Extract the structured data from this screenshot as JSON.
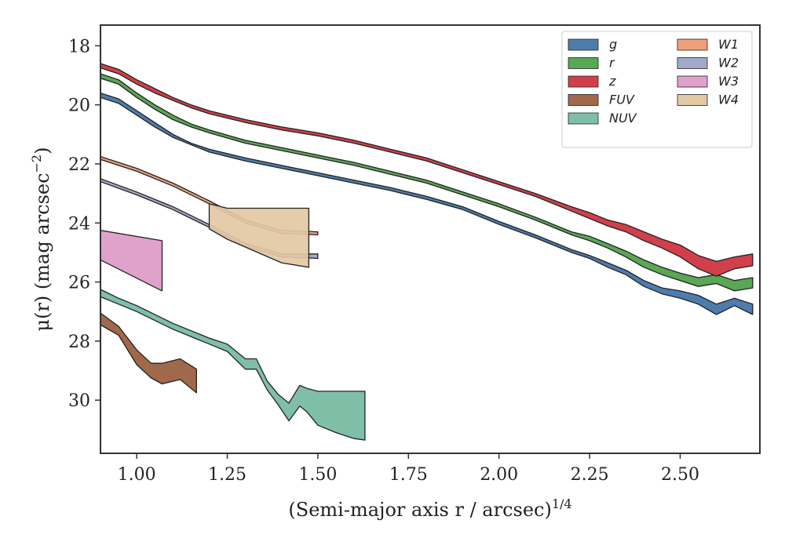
{
  "chart_data": {
    "type": "area",
    "xlabel": "(Semi-major axis r / arcsec)",
    "xlabel_exponent": "1/4",
    "ylabel": "μ(r) (mag arcsec",
    "ylabel_exponent": "−2",
    "ylabel_close": ")",
    "xlim": [
      0.9,
      2.72
    ],
    "ylim": [
      31.8,
      17.3
    ],
    "y_inverted": true,
    "grid": false,
    "legend_position": "top-right",
    "x_ticks": [
      1.0,
      1.25,
      1.5,
      1.75,
      2.0,
      2.25,
      2.5
    ],
    "x_tick_labels": [
      "1.00",
      "1.25",
      "1.50",
      "1.75",
      "2.00",
      "2.25",
      "2.50"
    ],
    "y_ticks": [
      18,
      20,
      22,
      24,
      26,
      28,
      30
    ],
    "y_tick_labels": [
      "18",
      "20",
      "22",
      "24",
      "26",
      "28",
      "30"
    ],
    "series": [
      {
        "name": "g",
        "color": "#4c7dad",
        "x": [
          0.9,
          0.95,
          1.0,
          1.05,
          1.1,
          1.15,
          1.2,
          1.3,
          1.4,
          1.5,
          1.6,
          1.7,
          1.8,
          1.9,
          2.0,
          2.1,
          2.2,
          2.25,
          2.3,
          2.35,
          2.4,
          2.45,
          2.5,
          2.55,
          2.6,
          2.65,
          2.7
        ],
        "y_upper": [
          19.6,
          19.8,
          20.2,
          20.6,
          21.0,
          21.3,
          21.5,
          21.8,
          22.05,
          22.3,
          22.55,
          22.8,
          23.1,
          23.45,
          23.95,
          24.4,
          24.9,
          25.1,
          25.35,
          25.6,
          25.95,
          26.2,
          26.3,
          26.45,
          26.75,
          26.55,
          26.75
        ],
        "y_lower": [
          19.75,
          19.95,
          20.35,
          20.75,
          21.1,
          21.35,
          21.6,
          21.9,
          22.15,
          22.4,
          22.65,
          22.9,
          23.2,
          23.55,
          24.05,
          24.5,
          25.0,
          25.2,
          25.5,
          25.75,
          26.15,
          26.4,
          26.55,
          26.75,
          27.1,
          26.8,
          27.1
        ]
      },
      {
        "name": "r",
        "color": "#5aa755",
        "x": [
          0.9,
          0.95,
          1.0,
          1.05,
          1.1,
          1.15,
          1.2,
          1.3,
          1.4,
          1.5,
          1.6,
          1.7,
          1.8,
          1.9,
          2.0,
          2.1,
          2.2,
          2.25,
          2.3,
          2.35,
          2.4,
          2.45,
          2.5,
          2.55,
          2.6,
          2.65,
          2.7
        ],
        "y_upper": [
          18.95,
          19.15,
          19.6,
          20.0,
          20.35,
          20.65,
          20.85,
          21.2,
          21.45,
          21.7,
          21.95,
          22.25,
          22.55,
          22.95,
          23.35,
          23.8,
          24.3,
          24.45,
          24.7,
          24.95,
          25.25,
          25.5,
          25.7,
          25.85,
          25.75,
          25.95,
          25.85
        ],
        "y_lower": [
          19.1,
          19.3,
          19.75,
          20.15,
          20.5,
          20.75,
          20.95,
          21.3,
          21.55,
          21.8,
          22.05,
          22.35,
          22.65,
          23.05,
          23.45,
          23.9,
          24.4,
          24.6,
          24.85,
          25.15,
          25.5,
          25.75,
          25.95,
          26.15,
          26.05,
          26.3,
          26.2
        ]
      },
      {
        "name": "z",
        "color": "#d1404a",
        "x": [
          0.9,
          0.95,
          1.0,
          1.05,
          1.1,
          1.15,
          1.2,
          1.3,
          1.4,
          1.5,
          1.6,
          1.7,
          1.8,
          1.9,
          2.0,
          2.1,
          2.2,
          2.25,
          2.3,
          2.35,
          2.4,
          2.45,
          2.5,
          2.55,
          2.6,
          2.65,
          2.7
        ],
        "y_upper": [
          18.6,
          18.8,
          19.15,
          19.45,
          19.75,
          20.0,
          20.2,
          20.5,
          20.75,
          20.95,
          21.2,
          21.5,
          21.8,
          22.2,
          22.6,
          23.0,
          23.45,
          23.65,
          23.9,
          24.05,
          24.3,
          24.55,
          24.75,
          25.1,
          25.3,
          25.15,
          25.05
        ],
        "y_lower": [
          18.75,
          18.95,
          19.3,
          19.6,
          19.85,
          20.1,
          20.3,
          20.6,
          20.85,
          21.05,
          21.3,
          21.6,
          21.9,
          22.3,
          22.7,
          23.1,
          23.6,
          23.85,
          24.1,
          24.3,
          24.6,
          24.85,
          25.15,
          25.55,
          25.8,
          25.55,
          25.45
        ]
      },
      {
        "name": "FUV",
        "color": "#a0694b",
        "x": [
          0.9,
          0.95,
          1.0,
          1.04,
          1.07,
          1.12,
          1.165
        ],
        "y_upper": [
          27.05,
          27.5,
          28.3,
          28.75,
          28.75,
          28.6,
          28.95
        ],
        "y_lower": [
          27.45,
          27.8,
          28.8,
          29.25,
          29.45,
          29.3,
          29.75
        ]
      },
      {
        "name": "NUV",
        "color": "#7fbfa7",
        "x": [
          0.9,
          0.95,
          1.0,
          1.1,
          1.2,
          1.25,
          1.3,
          1.33,
          1.36,
          1.39,
          1.42,
          1.45,
          1.47,
          1.5,
          1.55,
          1.6,
          1.63
        ],
        "y_upper": [
          26.25,
          26.55,
          26.8,
          27.4,
          27.9,
          28.1,
          28.6,
          28.6,
          29.35,
          29.8,
          30.1,
          29.5,
          29.6,
          29.7,
          29.7,
          29.7,
          29.7
        ],
        "y_lower": [
          26.5,
          26.75,
          27.0,
          27.6,
          28.1,
          28.35,
          28.95,
          28.95,
          29.65,
          30.15,
          30.7,
          30.2,
          30.4,
          30.85,
          31.1,
          31.3,
          31.35
        ]
      },
      {
        "name": "W1",
        "color": "#ef9f7c",
        "x": [
          0.9,
          1.0,
          1.1,
          1.2,
          1.3,
          1.4,
          1.5
        ],
        "y_upper": [
          21.75,
          22.15,
          22.65,
          23.25,
          23.9,
          24.25,
          24.3
        ],
        "y_lower": [
          21.85,
          22.25,
          22.75,
          23.35,
          24.0,
          24.35,
          24.4
        ]
      },
      {
        "name": "W2",
        "color": "#a2a9c9",
        "x": [
          0.9,
          1.0,
          1.1,
          1.2,
          1.3,
          1.4,
          1.5
        ],
        "y_upper": [
          22.5,
          22.95,
          23.45,
          24.05,
          24.7,
          25.05,
          25.05
        ],
        "y_lower": [
          22.6,
          23.05,
          23.55,
          24.15,
          24.8,
          25.15,
          25.2
        ]
      },
      {
        "name": "W3",
        "color": "#e0a2cb",
        "x": [
          0.9,
          1.07
        ],
        "y_upper": [
          24.25,
          24.6
        ],
        "y_lower": [
          25.25,
          26.3
        ]
      },
      {
        "name": "W4",
        "color": "#e3c8a4",
        "x": [
          1.2,
          1.25,
          1.4,
          1.475
        ],
        "y_upper": [
          23.35,
          23.5,
          23.5,
          23.5
        ],
        "y_lower": [
          24.2,
          24.55,
          25.35,
          25.5
        ]
      }
    ]
  }
}
